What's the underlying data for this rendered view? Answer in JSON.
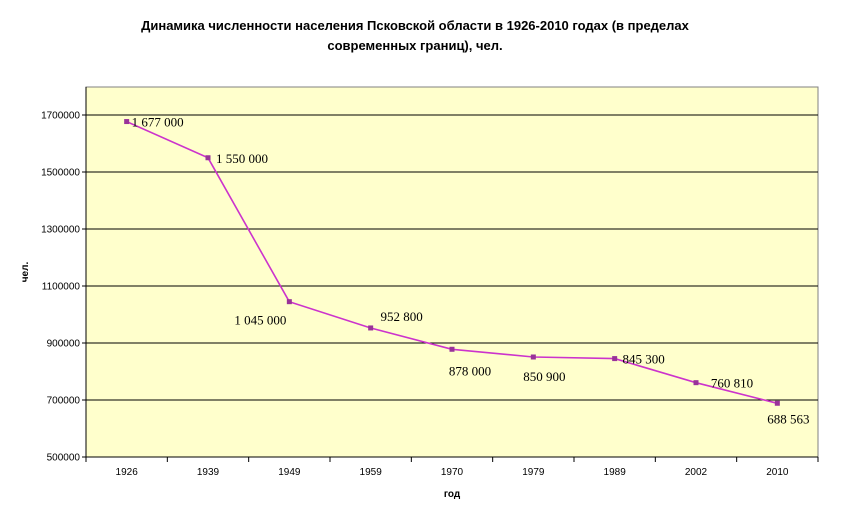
{
  "chart_data": {
    "type": "line",
    "title_line1": "Динамика численности населения Псковской области в 1926-2010 годах (в пределах",
    "title_line2": "современных границ), чел.",
    "xlabel": "год",
    "ylabel": "чел.",
    "categories": [
      "1926",
      "1939",
      "1949",
      "1959",
      "1970",
      "1979",
      "1989",
      "2002",
      "2010"
    ],
    "values": [
      1677000,
      1550000,
      1045000,
      952800,
      878000,
      850900,
      845300,
      760810,
      688563
    ],
    "data_labels": [
      "1 677 000",
      "1 550 000",
      "1 045 000",
      "952 800",
      "878 000",
      "850 900",
      "845 300",
      "760 810",
      "688 563"
    ],
    "ylim": [
      500000,
      1700000
    ],
    "yticks": [
      "500000",
      "700000",
      "900000",
      "1100000",
      "1300000",
      "1500000",
      "1700000"
    ],
    "grid": true,
    "colors": {
      "plot_background": "#FFFFCC",
      "line": "#CC33CC",
      "marker": "#993399",
      "grid": "#000000"
    }
  }
}
